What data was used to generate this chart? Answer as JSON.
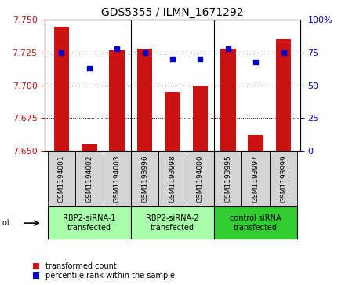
{
  "title": "GDS5355 / ILMN_1671292",
  "samples": [
    "GSM1194001",
    "GSM1194002",
    "GSM1194003",
    "GSM1193996",
    "GSM1193998",
    "GSM1194000",
    "GSM1193995",
    "GSM1193997",
    "GSM1193999"
  ],
  "bar_values": [
    7.745,
    7.655,
    7.727,
    7.728,
    7.695,
    7.7,
    7.728,
    7.662,
    7.735
  ],
  "percentile_values": [
    75,
    63,
    78,
    75,
    70,
    70,
    78,
    68,
    75
  ],
  "y_min": 7.65,
  "y_max": 7.75,
  "y_ticks": [
    7.65,
    7.675,
    7.7,
    7.725,
    7.75
  ],
  "y2_ticks": [
    0,
    25,
    50,
    75,
    100
  ],
  "bar_color": "#cc1111",
  "dot_color": "#0000cc",
  "bar_width": 0.55,
  "groups": [
    {
      "label": "RBP2-siRNA-1\ntransfected",
      "indices": [
        0,
        1,
        2
      ],
      "color": "#aaffaa"
    },
    {
      "label": "RBP2-siRNA-2\ntransfected",
      "indices": [
        3,
        4,
        5
      ],
      "color": "#aaffaa"
    },
    {
      "label": "control siRNA\ntransfected",
      "indices": [
        6,
        7,
        8
      ],
      "color": "#33cc33"
    }
  ],
  "sample_bg": "#d4d4d4",
  "plot_bg": "#ffffff",
  "ylabel_left_color": "#cc1111",
  "ylabel_right_color": "#0000cc",
  "legend_items": [
    {
      "label": "transformed count",
      "color": "#cc1111"
    },
    {
      "label": "percentile rank within the sample",
      "color": "#0000cc"
    }
  ]
}
